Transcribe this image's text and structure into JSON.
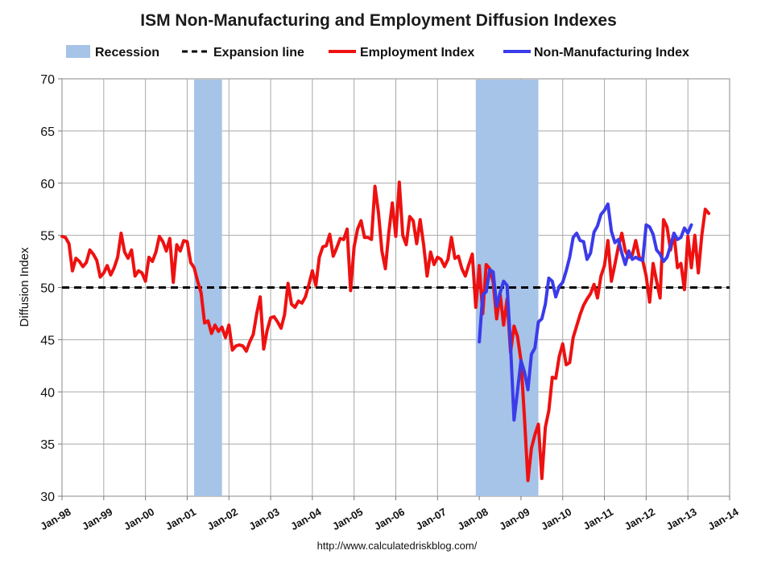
{
  "chart_data": {
    "type": "line",
    "title": "ISM Non-Manufacturing and Employment Diffusion Indexes",
    "ylabel": "Diffusion Index",
    "xlabel": "",
    "source": "http://www.calculatedriskblog.com/",
    "ylim": [
      30,
      70
    ],
    "yticks": [
      30,
      35,
      40,
      45,
      50,
      55,
      60,
      65,
      70
    ],
    "xlim": [
      "1998-01",
      "2014-01"
    ],
    "xticks": [
      "Jan-98",
      "Jan-99",
      "Jan-00",
      "Jan-01",
      "Jan-02",
      "Jan-03",
      "Jan-04",
      "Jan-05",
      "Jan-06",
      "Jan-07",
      "Jan-08",
      "Jan-09",
      "Jan-10",
      "Jan-11",
      "Jan-12",
      "Jan-13",
      "Jan-14"
    ],
    "grid": true,
    "legend_position": "top",
    "legend": [
      {
        "label": "Recession",
        "kind": "band",
        "color": "#a6c3e8"
      },
      {
        "label": "Expansion line",
        "kind": "dashed",
        "color": "#000000"
      },
      {
        "label": "Employment Index",
        "kind": "line",
        "color": "#ee1111"
      },
      {
        "label": "Non-Manufacturing Index",
        "kind": "line",
        "color": "#3b3bea"
      }
    ],
    "recessions": [
      {
        "start": "2001-03",
        "end": "2001-11"
      },
      {
        "start": "2007-12",
        "end": "2009-06"
      }
    ],
    "expansion_line": 50,
    "series": [
      {
        "name": "Employment Index",
        "color": "#ee1111",
        "start": "1998-01",
        "values": [
          54.9,
          54.8,
          54.2,
          51.6,
          52.8,
          52.5,
          52.0,
          52.4,
          53.6,
          53.2,
          52.6,
          51.0,
          51.4,
          52.1,
          51.2,
          51.9,
          52.9,
          55.2,
          53.4,
          52.8,
          53.6,
          51.1,
          51.6,
          51.4,
          50.6,
          52.9,
          52.5,
          53.4,
          54.9,
          54.4,
          53.5,
          54.7,
          50.5,
          54.1,
          53.5,
          54.5,
          54.4,
          52.4,
          51.9,
          50.6,
          49.5,
          46.6,
          46.8,
          45.6,
          46.4,
          45.8,
          46.2,
          45.2,
          46.4,
          44.0,
          44.4,
          44.5,
          44.4,
          43.9,
          44.8,
          45.5,
          47.5,
          49.1,
          44.1,
          45.9,
          47.1,
          47.2,
          46.7,
          46.1,
          47.4,
          50.4,
          48.4,
          48.1,
          48.7,
          48.5,
          49.1,
          50.3,
          51.6,
          50.2,
          52.9,
          53.9,
          54.0,
          55.1,
          53.0,
          53.8,
          54.7,
          54.6,
          55.6,
          49.7,
          53.9,
          55.6,
          56.4,
          54.8,
          54.8,
          54.6,
          59.7,
          57.2,
          53.5,
          51.8,
          55.3,
          58.1,
          54.9,
          60.1,
          55.0,
          54.1,
          56.8,
          56.4,
          54.2,
          56.5,
          54.1,
          51.1,
          53.4,
          52.2,
          52.9,
          52.7,
          52.0,
          52.7,
          54.8,
          52.8,
          53.0,
          51.8,
          51.1,
          52.2,
          53.2,
          48.1,
          52.1,
          47.5,
          52.2,
          51.8,
          50.5,
          47.0,
          49.4,
          46.4,
          48.9,
          43.8,
          46.3,
          45.3,
          43.0,
          37.5,
          31.5,
          34.6,
          35.9,
          36.9,
          31.7,
          36.6,
          38.2,
          41.4,
          41.3,
          43.4,
          44.6,
          42.6,
          42.8,
          45.2,
          46.3,
          47.4,
          48.3,
          48.9,
          49.4,
          50.3,
          49.0,
          51.1,
          52.1,
          54.5,
          50.6,
          52.2,
          53.9,
          55.2,
          53.5,
          52.9,
          53.1,
          54.5,
          52.9,
          52.6,
          51.1,
          48.6,
          52.3,
          50.6,
          49.0,
          56.5,
          55.8,
          53.6,
          55.2,
          51.9,
          52.3,
          49.8,
          54.9,
          51.9,
          55.0,
          51.4,
          55.0,
          57.5,
          57.1
        ]
      },
      {
        "name": "Non-Manufacturing Index",
        "color": "#3b3bea",
        "start": "2008-01",
        "values": [
          44.8,
          49.3,
          49.6,
          51.7,
          51.5,
          48.2,
          49.5,
          50.6,
          50.2,
          44.4,
          37.3,
          40.1,
          43.0,
          41.9,
          40.2,
          43.6,
          44.2,
          46.7,
          47.0,
          48.4,
          50.9,
          50.6,
          49.1,
          50.1,
          50.5,
          51.6,
          52.9,
          54.8,
          55.2,
          54.5,
          54.4,
          52.7,
          53.3,
          55.3,
          55.9,
          57.0,
          57.4,
          58.0,
          55.4,
          54.3,
          54.6,
          53.3,
          52.2,
          53.5,
          52.7,
          52.9,
          52.7,
          52.6,
          56.0,
          55.8,
          55.1,
          53.6,
          53.2,
          52.5,
          52.9,
          54.0,
          55.2,
          54.6,
          54.8,
          55.7,
          55.2,
          56.0
        ]
      }
    ]
  }
}
